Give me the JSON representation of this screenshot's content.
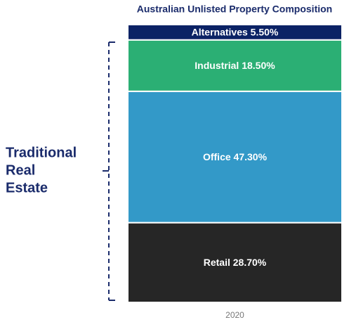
{
  "chart_data": {
    "type": "bar",
    "stacked": true,
    "title": "Australian Unlisted Property Composition",
    "categories": [
      "2020"
    ],
    "ylim": [
      0,
      100
    ],
    "series": [
      {
        "color": "#262626",
        "values": [
          28.7
        ],
        "value_labels": [
          "Retail 28.70%"
        ]
      },
      {
        "color": "#3399c8",
        "values": [
          47.3
        ],
        "value_labels": [
          "Office 47.30%"
        ]
      },
      {
        "color": "#2baf74",
        "values": [
          18.5
        ],
        "value_labels": [
          "Industrial 18.50%"
        ]
      },
      {
        "color": "#0b2265",
        "values": [
          5.5
        ],
        "value_labels": [
          "Alternatives 5.50%"
        ]
      }
    ],
    "annotation": [
      "Traditional",
      "Real",
      "Estate"
    ]
  }
}
